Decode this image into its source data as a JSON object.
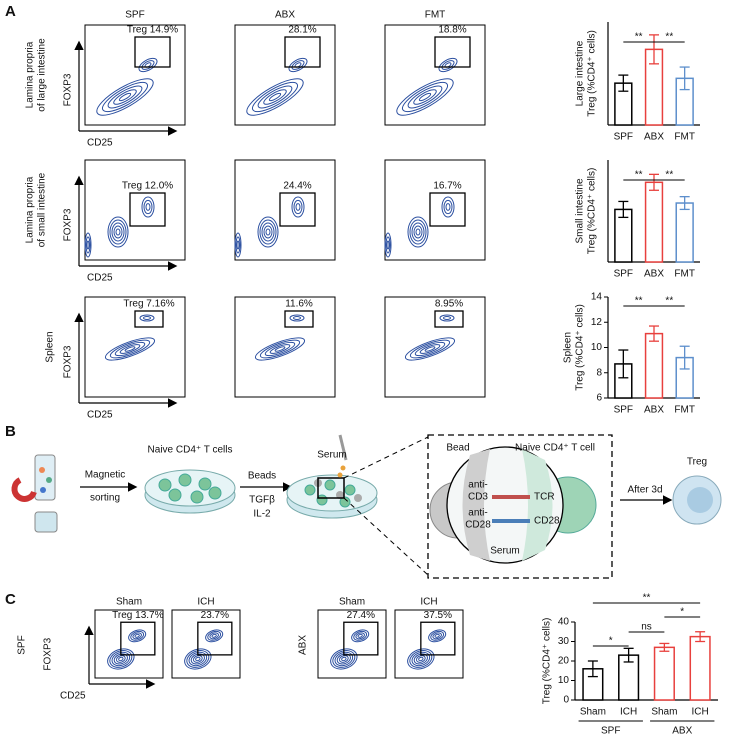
{
  "panel_a": {
    "label": "A",
    "columns": [
      "SPF",
      "ABX",
      "FMT"
    ],
    "x_axis": "CD25",
    "y_axis": "FOXP3",
    "rows": [
      {
        "label": [
          "Lamina propria",
          "of large intestine"
        ],
        "gates": [
          "Treg 14.9%",
          "28.1%",
          "18.8%"
        ]
      },
      {
        "label": [
          "Lamina propria",
          "of small intestine"
        ],
        "gates": [
          "Treg 12.0%",
          "24.4%",
          "16.7%"
        ]
      },
      {
        "label": [
          "Spleen"
        ],
        "gates": [
          "Treg 7.16%",
          "11.6%",
          "8.95%"
        ]
      }
    ]
  },
  "panel_b": {
    "label": "B",
    "sorting": [
      "Magnetic",
      "sorting"
    ],
    "cells": "Naive CD4⁺ T cells",
    "reagents": [
      "Beads",
      "TGFβ",
      "IL-2"
    ],
    "serum": "Serum",
    "bead": "Bead",
    "t_cell": "Naive CD4⁺ T cell",
    "anti_cd3": [
      "anti-",
      "CD3"
    ],
    "anti_cd28": [
      "anti-",
      "CD28"
    ],
    "tcr": "TCR",
    "cd28": "CD28",
    "serum_inner": "Serum",
    "time": "After 3d",
    "result": "Treg"
  },
  "panel_c": {
    "label": "C",
    "columns": [
      "Sham",
      "ICH",
      "Sham",
      "ICH"
    ],
    "rows": [
      "SPF",
      "ABX"
    ],
    "x_axis": "CD25",
    "y_axis": "FOXP3",
    "gates": [
      "Treg 13.7%",
      "23.7%",
      "27.4%",
      "37.5%"
    ]
  },
  "chart_data": [
    {
      "type": "bar",
      "ylabel": [
        "Large intestine",
        "Treg (%CD4⁺ cells)"
      ],
      "categories": [
        "SPF",
        "ABX",
        "FMT"
      ],
      "values": [
        13,
        23.5,
        14.5
      ],
      "errors": [
        2.5,
        4.5,
        3.5
      ],
      "colors": [
        "#000000",
        "#e8403d",
        "#5d8fcc"
      ],
      "ylim": [
        0,
        32
      ],
      "significance": [
        "**",
        "**"
      ]
    },
    {
      "type": "bar",
      "ylabel": [
        "Small intestine",
        "Treg (%CD4⁺ cells)"
      ],
      "categories": [
        "SPF",
        "ABX",
        "FMT"
      ],
      "values": [
        16.5,
        25,
        18.5
      ],
      "errors": [
        2.5,
        2.5,
        2
      ],
      "colors": [
        "#000000",
        "#e8403d",
        "#5d8fcc"
      ],
      "ylim": [
        0,
        32
      ],
      "significance": [
        "**",
        "**"
      ]
    },
    {
      "type": "bar",
      "ylabel": [
        "Spleen",
        "Treg (%CD4⁺ cells)"
      ],
      "categories": [
        "SPF",
        "ABX",
        "FMT"
      ],
      "values": [
        8.7,
        11.1,
        9.2
      ],
      "errors": [
        1.1,
        0.6,
        0.9
      ],
      "colors": [
        "#000000",
        "#e8403d",
        "#5d8fcc"
      ],
      "ylim": [
        6,
        14
      ],
      "yticks": [
        6,
        8,
        10,
        12,
        14
      ],
      "significance": [
        "**",
        "**"
      ]
    },
    {
      "type": "bar",
      "ylabel": [
        "Treg (%CD4⁺ cells)"
      ],
      "categories": [
        "Sham",
        "ICH",
        "Sham",
        "ICH"
      ],
      "groups": [
        "SPF",
        "ABX"
      ],
      "values": [
        16,
        23,
        27,
        32.5
      ],
      "errors": [
        4,
        3.5,
        2,
        2.5
      ],
      "colors": [
        "#000000",
        "#000000",
        "#e8403d",
        "#e8403d"
      ],
      "ylim": [
        0,
        40
      ],
      "yticks": [
        0,
        10,
        20,
        30,
        40
      ],
      "significance": [
        "*",
        "ns",
        "*",
        "**"
      ]
    }
  ]
}
